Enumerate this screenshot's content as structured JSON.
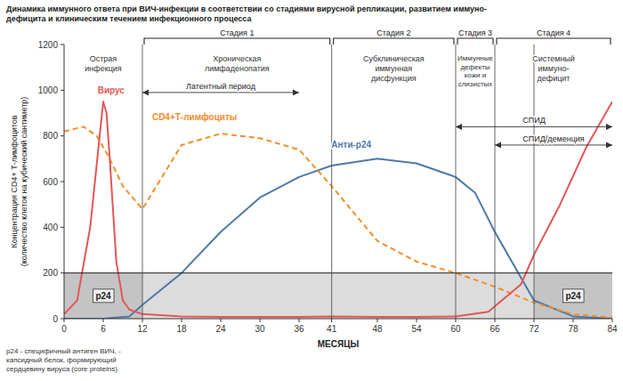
{
  "chart_data": {
    "type": "line",
    "title": "Динамика иммунного ответа при ВИЧ-инфекции в соответствии со стадиями вирусной репликации, развитием иммуно-\nдефицита и клиническим течением инфекционного процесса",
    "x_label": "МЕСЯЦЫ",
    "y_label": "Концентрация СD4+ Т-лимфоцитов\n(количество клеток на кубический сантиметр)",
    "xlim": [
      0,
      84
    ],
    "ylim": [
      0,
      1200
    ],
    "xticks": [
      0,
      6,
      12,
      18,
      24,
      30,
      36,
      41,
      48,
      54,
      60,
      66,
      72,
      78,
      84
    ],
    "yticks": [
      0,
      200,
      400,
      600,
      800,
      1000,
      1200
    ],
    "series": [
      {
        "name": "Анти-р24",
        "color": "#4e79a7",
        "line_style": "solid",
        "label_x": 44,
        "label_y": 750,
        "x": [
          0,
          6,
          10,
          12,
          18,
          24,
          30,
          36,
          41,
          48,
          54,
          60,
          63,
          66,
          72,
          78,
          84
        ],
        "values": [
          0,
          0,
          10,
          60,
          200,
          380,
          530,
          620,
          670,
          700,
          680,
          620,
          550,
          380,
          80,
          10,
          0
        ]
      },
      {
        "name": "CD4+Т-лимфоциты",
        "color": "#f28e2b",
        "line_style": "dashed",
        "label_x": 20,
        "label_y": 870,
        "x": [
          0,
          3,
          5,
          6,
          7,
          9,
          12,
          18,
          24,
          30,
          36,
          41,
          48,
          54,
          60,
          66,
          72,
          78,
          84
        ],
        "values": [
          820,
          840,
          800,
          750,
          700,
          580,
          480,
          760,
          810,
          790,
          740,
          580,
          340,
          250,
          200,
          140,
          70,
          20,
          5
        ]
      },
      {
        "name": "Вирус",
        "color": "#e15759",
        "line_style": "solid",
        "label_x": 7.2,
        "label_y": 985,
        "x": [
          0,
          2,
          4,
          6,
          6.5,
          7,
          8,
          9,
          10,
          12,
          18,
          24,
          30,
          36,
          41,
          48,
          54,
          60,
          65,
          70,
          72,
          76,
          80,
          84
        ],
        "values": [
          20,
          80,
          400,
          950,
          900,
          700,
          250,
          80,
          40,
          20,
          10,
          8,
          8,
          8,
          10,
          8,
          8,
          10,
          30,
          150,
          280,
          500,
          750,
          950
        ]
      }
    ],
    "threshold": 200,
    "marked_ranges": [
      {
        "label": "р24",
        "from": 0,
        "to": 12
      },
      {
        "label": "р24",
        "from": 72,
        "to": 84
      }
    ],
    "vertical_lines": [
      12,
      41,
      60,
      66,
      72
    ],
    "stages": [
      {
        "label": "Стадия 1",
        "from": 12,
        "to": 41
      },
      {
        "label": "Стадия 2",
        "from": 41,
        "to": 60
      },
      {
        "label": "Стадия 3",
        "from": 60,
        "to": 66
      },
      {
        "label": "Стадия 4",
        "from": 66,
        "to": 84
      }
    ],
    "phases": [
      {
        "text": "Острая\nинфекция",
        "from": 0,
        "to": 12
      },
      {
        "text": "Хроническая\nлимфаденопатия",
        "from": 12,
        "to": 41
      },
      {
        "text": "Субклиническая\nиммунная\nдисфункция",
        "from": 41,
        "to": 60
      },
      {
        "text": "Иммунные\nдефекты\nкожи и\nслизистых",
        "from": 60,
        "to": 66
      },
      {
        "text": "Системный\nиммуно-\nдефицит",
        "from": 66,
        "to": 84
      }
    ],
    "spans": [
      {
        "text": "Латентный период",
        "from": 12,
        "to": 36,
        "y": 990
      },
      {
        "text": "СПИД",
        "from": 60,
        "to": 84,
        "y": 840
      },
      {
        "text": "СПИД/деменция",
        "from": 66,
        "to": 84,
        "y": 760
      }
    ],
    "footnote": "р24 - специфичный антиген ВИЧ, -\nкапсидный белок, формирующий\nсердцевину вируса (core proteins)"
  }
}
